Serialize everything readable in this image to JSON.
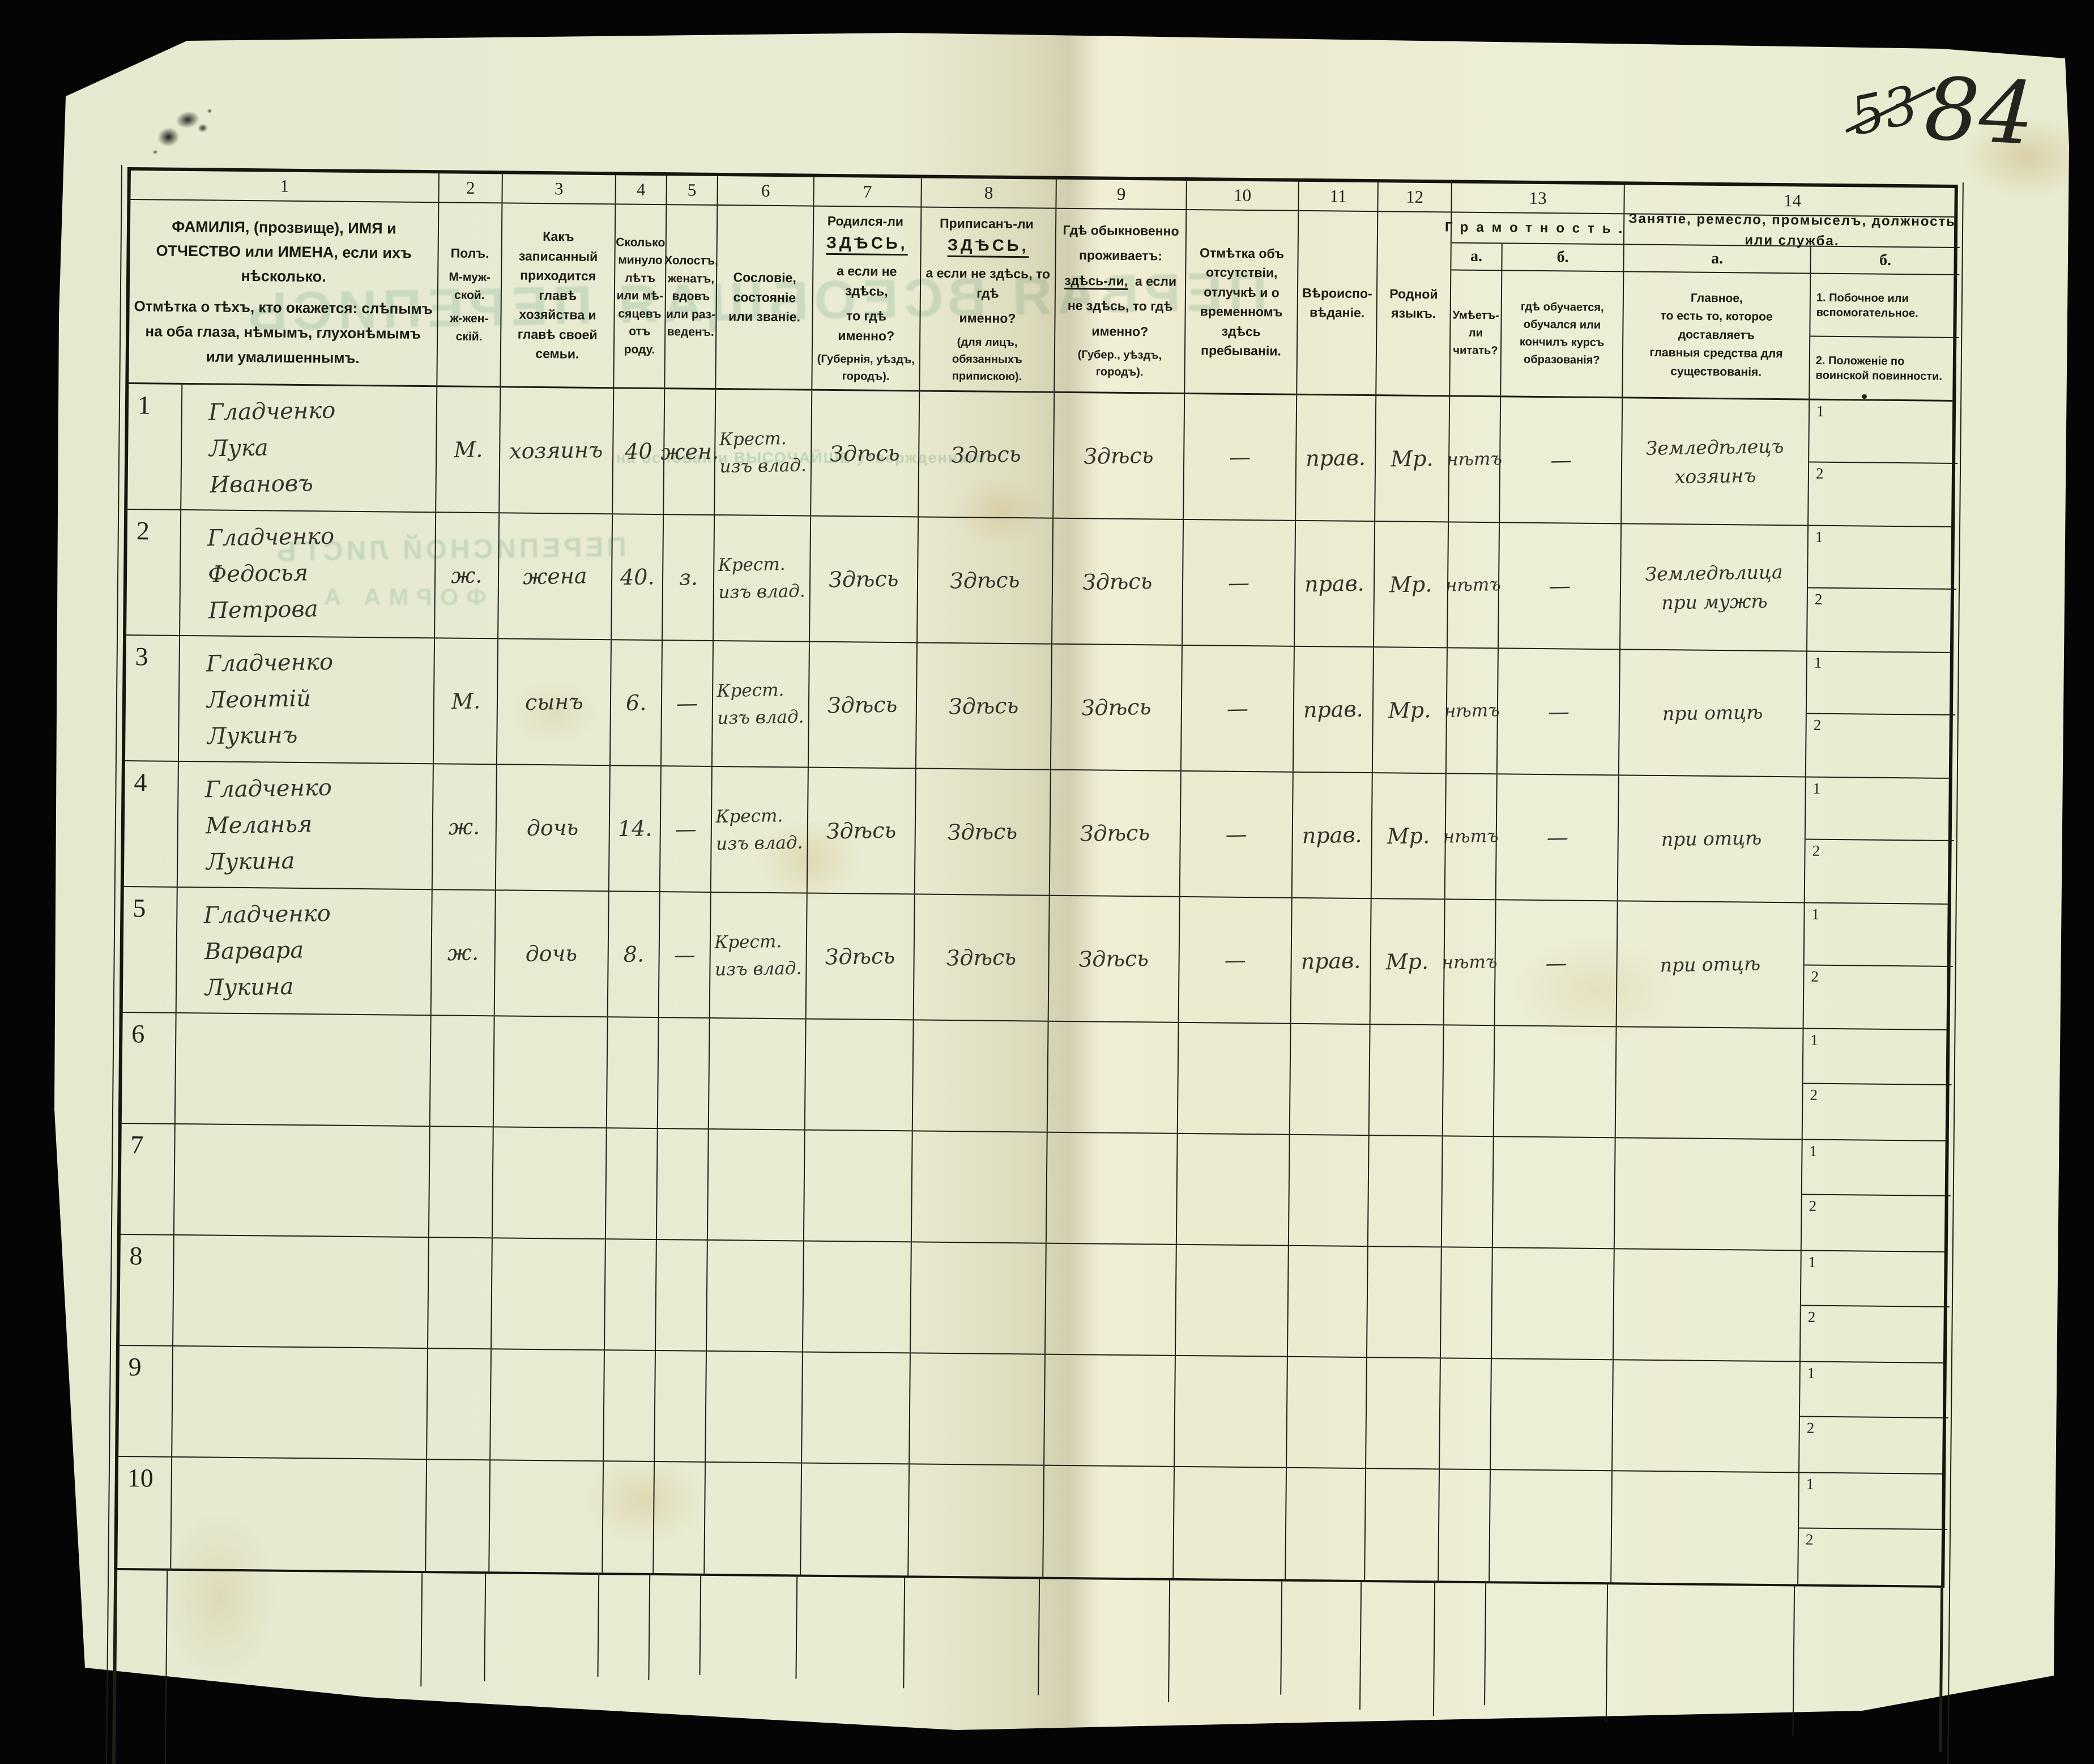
{
  "corner": {
    "crossed_number": "53",
    "page_number": "84"
  },
  "bleedthrough": {
    "title": "ПЕРВАЯ ВСЕОБЩАЯ ПЕРЕПИСЬ",
    "subtitle": "ПЕРЕПИСНОЙ ЛИСТЪ",
    "form": "ФОРМА А",
    "line": "на основаніи ВЫСОЧАЙШЕ утвержденнаго"
  },
  "table": {
    "col_numbers": [
      "1",
      "2",
      "3",
      "4",
      "5",
      "6",
      "7",
      "8",
      "9",
      "10",
      "11",
      "12",
      "13",
      "14"
    ],
    "sub_labels": [
      "1",
      "2"
    ],
    "header": {
      "col1_p1": "ФАМИЛІЯ, (прозвище), ИМЯ и ОТЧЕСТВО или ИМЕНА, если ихъ нѣсколько.",
      "col1_p2": "Отмѣтка о тѣхъ, кто окажется: слѣпымъ на оба глаза, нѣмымъ, глухонѣмымъ или умалишеннымъ.",
      "col2_t": "Полъ.",
      "col2_m": "М-муж-\nской.",
      "col2_f": "ж-жен-\nскій.",
      "col3": "Какъ записанный приходится главѣ хозяйства и главѣ своей семьи.",
      "col4": "Сколько\nминуло\nлѣтъ\nили мѣ-\nсяцевъ\nотъ роду.",
      "col5": "Холостъ,\nженатъ,\nвдовъ\nили раз-\nведенъ.",
      "col6": "Сословіе, состояніе или званіе.",
      "col7": {
        "q": "Родился-ли",
        "here": "ЗДѢСЬ,",
        "l2": "а если не здѣсь,",
        "l3": "то гдѣ именно?",
        "paren": "(Губернія, уѣздъ, городъ)."
      },
      "col8": {
        "q": "Приписанъ-ли",
        "here": "ЗДѢСЬ,",
        "l2": "а если не здѣсь, то гдѣ",
        "l3": "именно?",
        "paren": "(для лицъ, обязанныхъ припискою)."
      },
      "col9": {
        "l1": "Гдѣ обыкновенно",
        "l2": "проживаетъ:",
        "here": "здѣсь-ли,",
        "l3": "а если",
        "l4": "не здѣсь, то гдѣ",
        "l5": "именно?",
        "paren": "(Губер., уѣздъ, городъ)."
      },
      "col10": "Отмѣтка объ отсутствіи, отлучкѣ и о временномъ здѣсь пребываніи.",
      "col11": "Вѣроиспо-\nвѣданіе.",
      "col12": "Родной\nязыкъ.",
      "col13_title": "Грамотность.",
      "col13_a_label": "а.",
      "col13_b_label": "б.",
      "col13_a": "Умѣетъ-\nли\nчитать?",
      "col13_b": "гдѣ обучается,\nобучался или\nкончилъ курсъ\nобразованія?",
      "col14_title": "Занятіе, ремесло, промыселъ, должность или служба.",
      "col14_a_label": "а.",
      "col14_b_label": "б.",
      "col14_a": "Главное,\nто есть то, которое доставляетъ\nглавныя средства для существованія.",
      "col14_b1": "1.  Побочное или вспомогательное.",
      "col14_b2": "2.  Положеніе по воинской повинности."
    },
    "rows": [
      {
        "num": "1",
        "name": "Гладченко\nЛука\nИвановъ",
        "sex": "М.",
        "relation": "хозяинъ",
        "age": "40",
        "marital": "жен.",
        "estate": "Крест.\nизъ влад.",
        "born": "Здѣсь",
        "registered": "Здѣсь",
        "resides": "Здѣсь",
        "absence": "—",
        "religion": "прав.",
        "language": "Мр.",
        "lit_a": "нѣтъ",
        "lit_b": "—",
        "occ_a": "Земледѣлецъ\nхозяинъ",
        "occ_b1": "",
        "occ_b2": ""
      },
      {
        "num": "2",
        "name": "Гладченко\nФедосья\nПетрова",
        "sex": "ж.",
        "relation": "жена",
        "age": "40.",
        "marital": "з.",
        "estate": "Крест.\nизъ влад.",
        "born": "Здѣсь",
        "registered": "Здѣсь",
        "resides": "Здѣсь",
        "absence": "—",
        "religion": "прав.",
        "language": "Мр.",
        "lit_a": "нѣтъ",
        "lit_b": "—",
        "occ_a": "Земледѣлица\nпри мужѣ",
        "occ_b1": "",
        "occ_b2": ""
      },
      {
        "num": "3",
        "name": "Гладченко\nЛеонтій\nЛукинъ",
        "sex": "М.",
        "relation": "сынъ",
        "age": "6.",
        "marital": "—",
        "estate": "Крест.\nизъ влад.",
        "born": "Здѣсь",
        "registered": "Здѣсь",
        "resides": "Здѣсь",
        "absence": "—",
        "religion": "прав.",
        "language": "Мр.",
        "lit_a": "нѣтъ",
        "lit_b": "—",
        "occ_a": "при отцѣ",
        "occ_b1": "",
        "occ_b2": ""
      },
      {
        "num": "4",
        "name": "Гладченко\nМеланья\nЛукина",
        "sex": "ж.",
        "relation": "дочь",
        "age": "14.",
        "marital": "—",
        "estate": "Крест.\nизъ влад.",
        "born": "Здѣсь",
        "registered": "Здѣсь",
        "resides": "Здѣсь",
        "absence": "—",
        "religion": "прав.",
        "language": "Мр.",
        "lit_a": "нѣтъ",
        "lit_b": "—",
        "occ_a": "при отцѣ",
        "occ_b1": "",
        "occ_b2": ""
      },
      {
        "num": "5",
        "name": "Гладченко\nВарвара\nЛукина",
        "sex": "ж.",
        "relation": "дочь",
        "age": "8.",
        "marital": "—",
        "estate": "Крест.\nизъ влад.",
        "born": "Здѣсь",
        "registered": "Здѣсь",
        "resides": "Здѣсь",
        "absence": "—",
        "religion": "прав.",
        "language": "Мр.",
        "lit_a": "нѣтъ",
        "lit_b": "—",
        "occ_a": "при отцѣ",
        "occ_b1": "",
        "occ_b2": ""
      },
      {
        "num": "6",
        "name": "",
        "sex": "",
        "relation": "",
        "age": "",
        "marital": "",
        "estate": "",
        "born": "",
        "registered": "",
        "resides": "",
        "absence": "",
        "religion": "",
        "language": "",
        "lit_a": "",
        "lit_b": "",
        "occ_a": "",
        "occ_b1": "",
        "occ_b2": ""
      },
      {
        "num": "7",
        "name": "",
        "sex": "",
        "relation": "",
        "age": "",
        "marital": "",
        "estate": "",
        "born": "",
        "registered": "",
        "resides": "",
        "absence": "",
        "religion": "",
        "language": "",
        "lit_a": "",
        "lit_b": "",
        "occ_a": "",
        "occ_b1": "",
        "occ_b2": ""
      },
      {
        "num": "8",
        "name": "",
        "sex": "",
        "relation": "",
        "age": "",
        "marital": "",
        "estate": "",
        "born": "",
        "registered": "",
        "resides": "",
        "absence": "",
        "religion": "",
        "language": "",
        "lit_a": "",
        "lit_b": "",
        "occ_a": "",
        "occ_b1": "",
        "occ_b2": ""
      },
      {
        "num": "9",
        "name": "",
        "sex": "",
        "relation": "",
        "age": "",
        "marital": "",
        "estate": "",
        "born": "",
        "registered": "",
        "resides": "",
        "absence": "",
        "religion": "",
        "language": "",
        "lit_a": "",
        "lit_b": "",
        "occ_a": "",
        "occ_b1": "",
        "occ_b2": ""
      },
      {
        "num": "10",
        "name": "",
        "sex": "",
        "relation": "",
        "age": "",
        "marital": "",
        "estate": "",
        "born": "",
        "registered": "",
        "resides": "",
        "absence": "",
        "religion": "",
        "language": "",
        "lit_a": "",
        "lit_b": "",
        "occ_a": "",
        "occ_b1": "",
        "occ_b2": ""
      }
    ]
  }
}
